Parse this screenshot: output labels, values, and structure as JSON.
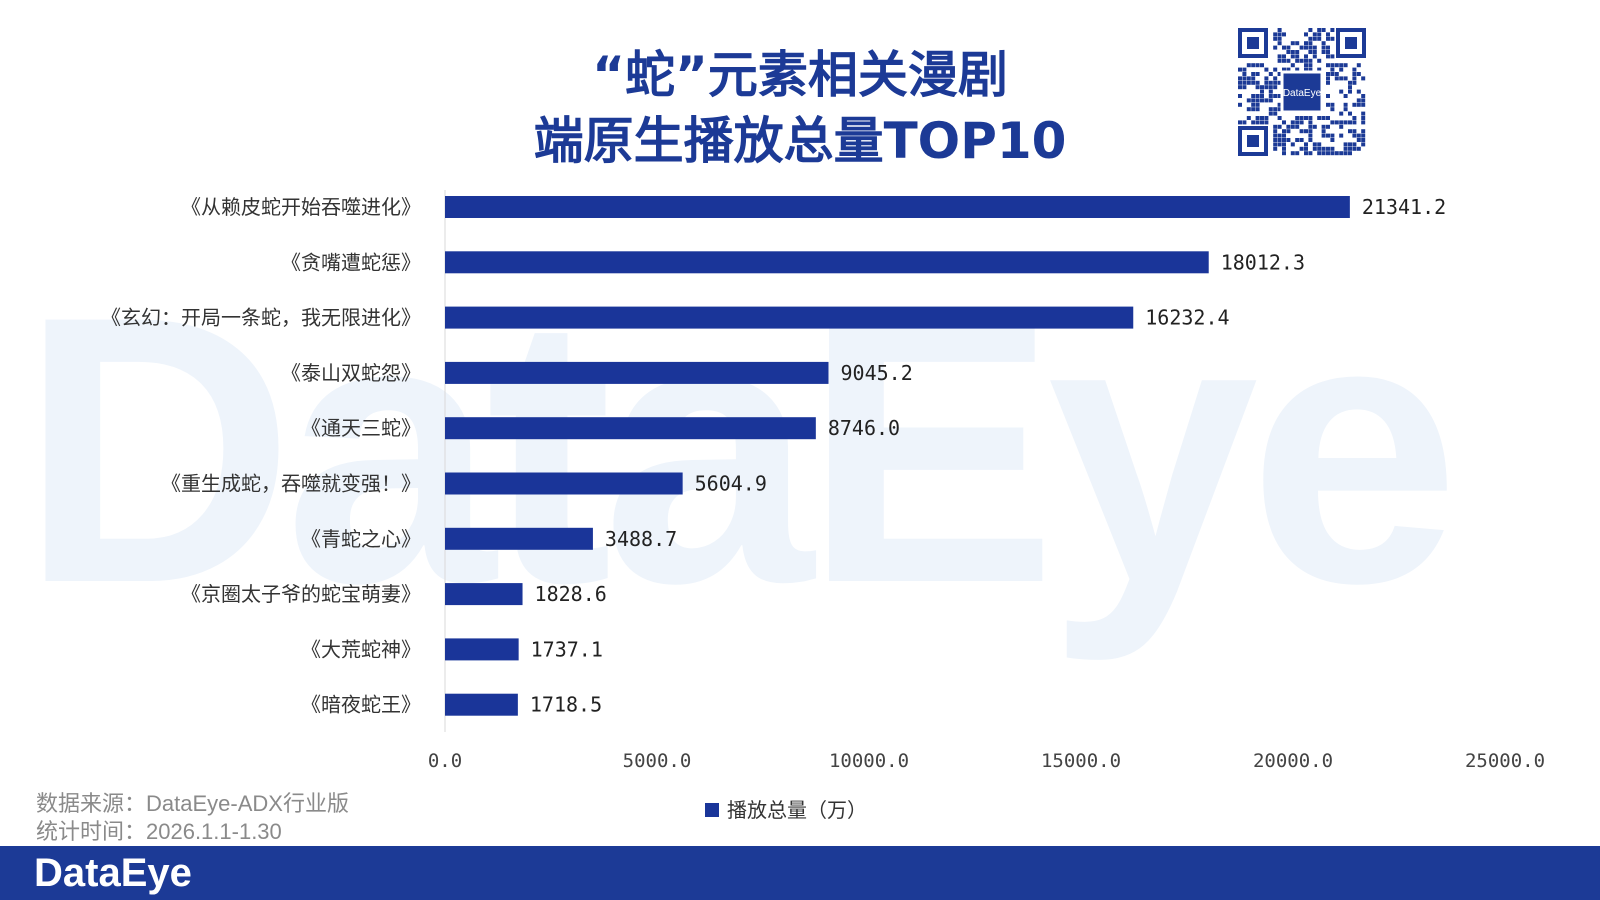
{
  "brand": {
    "watermark": "DataEye",
    "footer_logo": "DataEye",
    "qr_label": "DataEye"
  },
  "title": {
    "line1": "“蛇”元素相关漫剧",
    "line2": "端原生播放总量TOP10"
  },
  "source": {
    "line1": "数据来源：DataEye-ADX行业版",
    "line2": "统计时间：2026.1.1-1.30"
  },
  "colors": {
    "bar": "#1a3599",
    "title": "#1c3a96",
    "footer": "#1c3a96"
  },
  "chart_data": {
    "type": "bar",
    "orientation": "horizontal",
    "categories": [
      "《从赖皮蛇开始吞噬进化》",
      "《贪嘴遭蛇惩》",
      "《玄幻：开局一条蛇，我无限进化》",
      "《泰山双蛇怨》",
      "《通天三蛇》",
      "《重生成蛇，吞噬就变强！》",
      "《青蛇之心》",
      "《京圈太子爷的蛇宝萌妻》",
      "《大荒蛇神》",
      "《暗夜蛇王》"
    ],
    "series": [
      {
        "name": "播放总量（万）",
        "values": [
          21341.2,
          18012.3,
          16232.4,
          9045.2,
          8746.0,
          5604.9,
          3488.7,
          1828.6,
          1737.1,
          1718.5
        ],
        "labels": [
          "21341.2",
          "18012.3",
          "16232.4",
          "9045.2",
          "8746.0",
          "5604.9",
          "3488.7",
          "1828.6",
          "1737.1",
          "1718.5"
        ]
      }
    ],
    "xlim": [
      0,
      25000
    ],
    "xticks": [
      0,
      5000,
      10000,
      15000,
      20000,
      25000
    ],
    "xtick_labels": [
      "0.0",
      "5000.0",
      "10000.0",
      "15000.0",
      "20000.0",
      "25000.0"
    ],
    "legend": {
      "label": "播放总量（万）",
      "position": "bottom"
    },
    "grid": false,
    "xlabel": "",
    "ylabel": ""
  }
}
